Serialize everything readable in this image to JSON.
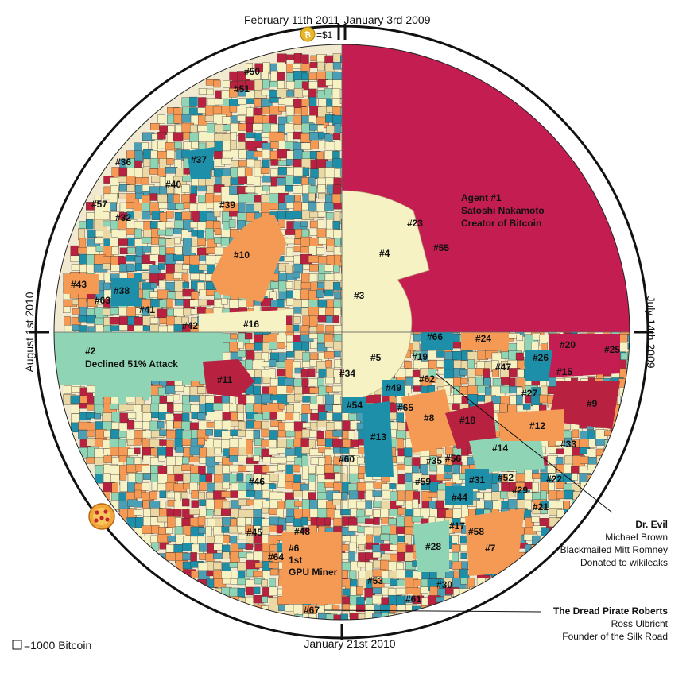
{
  "dates": {
    "top_left": "February 11th 2011",
    "top_right": "January 3rd 2009",
    "right": "July 14th 2009",
    "bottom": "January 21st 2010",
    "left": "August 1st 2010"
  },
  "price_marker": "=$1",
  "legend_text": "=1000 Bitcoin",
  "agents": [
    {
      "id": "agent-1-label",
      "lines": [
        "Agent #1",
        "Satoshi Nakamoto",
        "Creator of Bitcoin"
      ]
    },
    {
      "id": "agent-2-label",
      "lines": [
        "#2",
        "Declined 51% Attack"
      ]
    },
    {
      "id": "agent-6-label",
      "lines": [
        "#6",
        "1st",
        "GPU Miner"
      ]
    }
  ],
  "callouts": [
    {
      "id": "dr-evil",
      "title": "Dr. Evil",
      "lines": [
        "Michael Brown",
        "Blackmailed Mitt Romney",
        "Donated to wikileaks"
      ]
    },
    {
      "id": "dread-pirate",
      "title": "The Dread Pirate Roberts",
      "lines": [
        "Ross Ulbricht",
        "Founder of the Silk Road"
      ]
    }
  ],
  "numbers": [
    "#3",
    "#4",
    "#5",
    "#7",
    "#8",
    "#9",
    "#10",
    "#11",
    "#12",
    "#13",
    "#14",
    "#15",
    "#16",
    "#17",
    "#18",
    "#19",
    "#20",
    "#21",
    "#22",
    "#23",
    "#24",
    "#25",
    "#26",
    "#27",
    "#28",
    "#29",
    "#30",
    "#31",
    "#32",
    "#33",
    "#34",
    "#35",
    "#36",
    "#37",
    "#38",
    "#39",
    "#40",
    "#41",
    "#42",
    "#43",
    "#44",
    "#45",
    "#46",
    "#47",
    "#48",
    "#49",
    "#50",
    "#51",
    "#52",
    "#53",
    "#54",
    "#55",
    "#56",
    "#57",
    "#58",
    "#59",
    "#60",
    "#61",
    "#62",
    "#63",
    "#64",
    "#65",
    "#66",
    "#67"
  ],
  "colors": {
    "agent1": "#c41d52",
    "pale_yellow": "#f6f2c4",
    "orange": "#f59a55",
    "teal": "#1d8fa8",
    "mint": "#8fd4b4",
    "crimson": "#b8213f",
    "ring": "#111111"
  }
}
